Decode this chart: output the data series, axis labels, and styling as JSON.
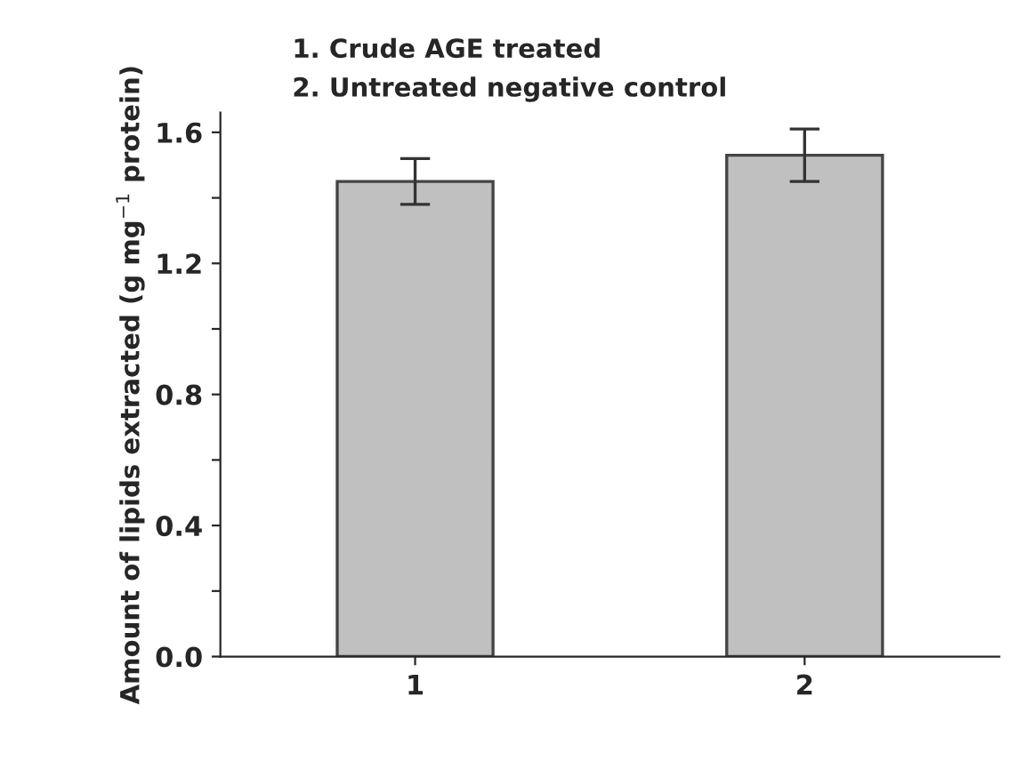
{
  "chart_data": {
    "type": "bar",
    "ylabel": "Amount of lipids extracted (g mg$^{−1}$ protein)",
    "annotations": [
      "1. Crude AGE treated",
      "2. Untreated negative control"
    ],
    "categories": [
      "1",
      "2"
    ],
    "values": [
      1.45,
      1.53
    ],
    "errors": [
      0.07,
      0.08
    ],
    "color": "#c0c0c0",
    "ylim": [
      0,
      1.66
    ],
    "yticks": [
      {
        "value": 0,
        "label": "0.0"
      },
      {
        "value": 0.2,
        "label": null
      },
      {
        "value": 0.4,
        "label": "0.4"
      },
      {
        "value": 0.6,
        "label": null
      },
      {
        "value": 0.8,
        "label": "0.8"
      },
      {
        "value": 1.0,
        "label": null
      },
      {
        "value": 1.2,
        "label": "1.2"
      },
      {
        "value": 1.4,
        "label": null
      },
      {
        "value": 1.6,
        "label": "1.6"
      }
    ],
    "grid": false,
    "legend": false
  }
}
